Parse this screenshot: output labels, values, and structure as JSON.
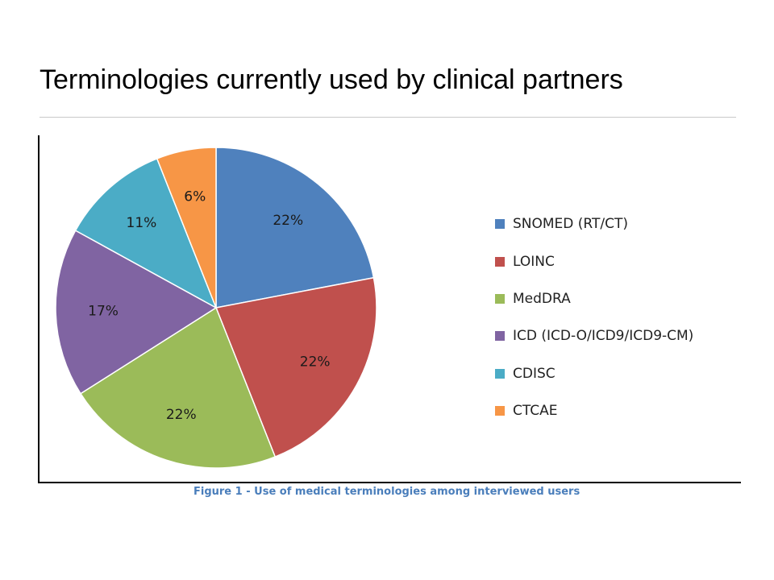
{
  "slide": {
    "title": "Terminologies currently used by clinical partners"
  },
  "chart_data": {
    "type": "pie",
    "caption": "Figure 1 - Use of medical terminologies among interviewed users",
    "categories": [
      "SNOMED (RT/CT)",
      "LOINC",
      "MedDRA",
      "ICD (ICD-O/ICD9/ICD9-CM)",
      "CDISC",
      "CTCAE"
    ],
    "values": [
      22,
      22,
      22,
      17,
      11,
      6
    ],
    "labels": [
      "22%",
      "22%",
      "22%",
      "17%",
      "11%",
      "6%"
    ],
    "colors": [
      "#4f81bd",
      "#c0504d",
      "#9bbb59",
      "#8064a2",
      "#4bacc6",
      "#f79646"
    ],
    "legend": "right"
  }
}
